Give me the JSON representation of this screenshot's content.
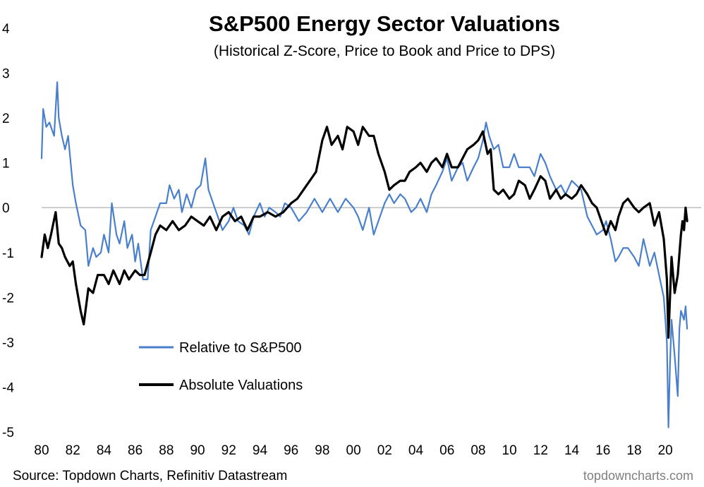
{
  "chart_data": {
    "type": "line",
    "title": "S&P500 Energy Sector Valuations",
    "subtitle": "(Historical Z-Score, Price to Book and Price to DPS)",
    "xlabel": "",
    "ylabel": "",
    "xlim": [
      1980,
      2022.3
    ],
    "ylim": [
      -5,
      4
    ],
    "x_ticks": [
      1980,
      1982,
      1984,
      1986,
      1988,
      1990,
      1992,
      1994,
      1996,
      1998,
      2000,
      2002,
      2004,
      2006,
      2008,
      2010,
      2012,
      2014,
      2016,
      2018,
      2020
    ],
    "x_tick_labels": [
      "80",
      "82",
      "84",
      "86",
      "88",
      "90",
      "92",
      "94",
      "96",
      "98",
      "00",
      "02",
      "04",
      "06",
      "08",
      "10",
      "12",
      "14",
      "16",
      "18",
      "20"
    ],
    "y_ticks": [
      4,
      3,
      2,
      1,
      0,
      -1,
      -2,
      -3,
      -4,
      -5
    ],
    "y_tick_labels": [
      "4",
      "3",
      "2",
      "1",
      "0",
      "-1",
      "-2",
      "-3",
      "-4",
      "-5"
    ],
    "zero_line": true,
    "grid": false,
    "legend_position": "bottom-left",
    "series": [
      {
        "name": "Relative to S&P500",
        "color": "#4a7fcb",
        "x": [
          1980.0,
          1980.1,
          1980.3,
          1980.5,
          1980.8,
          1981.0,
          1981.1,
          1981.3,
          1981.5,
          1981.7,
          1982.0,
          1982.2,
          1982.5,
          1982.8,
          1983.0,
          1983.3,
          1983.5,
          1983.8,
          1984.0,
          1984.3,
          1984.5,
          1984.8,
          1985.0,
          1985.3,
          1985.5,
          1985.8,
          1986.0,
          1986.2,
          1986.5,
          1986.8,
          1987.0,
          1987.3,
          1987.6,
          1988.0,
          1988.2,
          1988.5,
          1988.8,
          1989.0,
          1989.3,
          1989.6,
          1989.9,
          1990.2,
          1990.5,
          1990.7,
          1991.0,
          1991.3,
          1991.6,
          1992.0,
          1992.3,
          1992.6,
          1993.0,
          1993.3,
          1993.6,
          1994.0,
          1994.3,
          1994.6,
          1995.0,
          1995.3,
          1995.6,
          1996.0,
          1996.5,
          1997.0,
          1997.5,
          1998.0,
          1998.5,
          1999.0,
          1999.5,
          2000.0,
          2000.3,
          2000.6,
          2001.0,
          2001.3,
          2001.6,
          2002.0,
          2002.3,
          2002.6,
          2003.0,
          2003.3,
          2003.7,
          2004.0,
          2004.3,
          2004.7,
          2005.0,
          2005.3,
          2005.7,
          2006.0,
          2006.3,
          2006.7,
          2007.0,
          2007.3,
          2007.7,
          2008.0,
          2008.3,
          2008.5,
          2008.7,
          2009.0,
          2009.3,
          2009.6,
          2010.0,
          2010.3,
          2010.6,
          2011.0,
          2011.3,
          2011.6,
          2012.0,
          2012.3,
          2012.6,
          2013.0,
          2013.3,
          2013.6,
          2014.0,
          2014.3,
          2014.6,
          2015.0,
          2015.3,
          2015.6,
          2016.0,
          2016.2,
          2016.5,
          2016.8,
          2017.0,
          2017.3,
          2017.6,
          2018.0,
          2018.3,
          2018.6,
          2019.0,
          2019.3,
          2019.6,
          2019.9,
          2020.1,
          2020.2,
          2020.3,
          2020.4,
          2020.6,
          2020.8,
          2020.9,
          2021.0,
          2021.2,
          2021.3,
          2021.4
        ],
        "values": [
          1.1,
          2.2,
          1.8,
          1.9,
          1.6,
          2.8,
          2.0,
          1.6,
          1.3,
          1.6,
          0.5,
          0.1,
          -0.4,
          -0.5,
          -1.3,
          -0.9,
          -1.1,
          -1.0,
          -0.6,
          -1.0,
          0.1,
          -0.6,
          -0.8,
          -0.3,
          -0.9,
          -0.6,
          -1.2,
          -0.8,
          -1.6,
          -1.6,
          -0.5,
          -0.2,
          0.1,
          0.1,
          0.5,
          0.2,
          0.4,
          -0.1,
          0.3,
          0.0,
          0.4,
          0.5,
          1.1,
          0.4,
          0.1,
          -0.2,
          -0.5,
          -0.3,
          0.0,
          -0.3,
          -0.4,
          -0.6,
          -0.2,
          0.1,
          -0.2,
          0.0,
          -0.1,
          -0.2,
          0.1,
          0.0,
          -0.3,
          -0.1,
          0.2,
          -0.1,
          0.2,
          -0.1,
          0.2,
          0.0,
          -0.2,
          -0.5,
          0.0,
          -0.6,
          -0.3,
          0.1,
          0.3,
          0.1,
          0.3,
          0.2,
          -0.1,
          0.0,
          0.2,
          -0.1,
          0.3,
          0.5,
          0.8,
          1.1,
          0.6,
          0.9,
          1.0,
          0.6,
          0.9,
          1.1,
          1.5,
          1.9,
          1.6,
          1.3,
          1.4,
          0.9,
          0.9,
          1.2,
          0.9,
          0.9,
          0.9,
          0.7,
          1.2,
          1.0,
          0.7,
          0.4,
          0.5,
          0.3,
          0.6,
          0.5,
          0.4,
          -0.2,
          -0.4,
          -0.6,
          -0.5,
          -0.3,
          -0.7,
          -1.2,
          -1.1,
          -0.9,
          -0.9,
          -1.1,
          -1.3,
          -0.7,
          -1.3,
          -1.0,
          -1.5,
          -2.0,
          -3.0,
          -4.9,
          -3.5,
          -2.5,
          -3.3,
          -4.2,
          -2.7,
          -2.3,
          -2.5,
          -2.2,
          -2.7
        ]
      },
      {
        "name": "Absolute Valuations",
        "color": "#000000",
        "x": [
          1980.0,
          1980.2,
          1980.4,
          1980.6,
          1980.9,
          1981.1,
          1981.3,
          1981.5,
          1981.8,
          1982.0,
          1982.2,
          1982.5,
          1982.7,
          1983.0,
          1983.3,
          1983.6,
          1984.0,
          1984.3,
          1984.6,
          1985.0,
          1985.3,
          1985.6,
          1986.0,
          1986.3,
          1986.6,
          1987.0,
          1987.3,
          1987.6,
          1988.0,
          1988.4,
          1988.8,
          1989.2,
          1989.6,
          1990.0,
          1990.4,
          1990.8,
          1991.2,
          1991.6,
          1992.0,
          1992.4,
          1992.8,
          1993.2,
          1993.6,
          1994.0,
          1994.5,
          1995.0,
          1995.5,
          1996.0,
          1996.4,
          1996.8,
          1997.2,
          1997.6,
          1998.0,
          1998.3,
          1998.6,
          1999.0,
          1999.3,
          1999.6,
          2000.0,
          2000.3,
          2000.6,
          2001.0,
          2001.3,
          2001.6,
          2002.0,
          2002.3,
          2002.6,
          2003.0,
          2003.3,
          2003.6,
          2004.0,
          2004.3,
          2004.7,
          2005.0,
          2005.3,
          2005.7,
          2006.0,
          2006.3,
          2006.7,
          2007.0,
          2007.3,
          2007.7,
          2008.0,
          2008.3,
          2008.6,
          2008.8,
          2009.0,
          2009.3,
          2009.6,
          2010.0,
          2010.3,
          2010.6,
          2011.0,
          2011.3,
          2011.6,
          2012.0,
          2012.3,
          2012.6,
          2013.0,
          2013.3,
          2013.6,
          2014.0,
          2014.3,
          2014.6,
          2015.0,
          2015.3,
          2015.6,
          2016.0,
          2016.2,
          2016.5,
          2016.8,
          2017.0,
          2017.3,
          2017.6,
          2018.0,
          2018.3,
          2018.6,
          2019.0,
          2019.3,
          2019.6,
          2019.9,
          2020.1,
          2020.2,
          2020.4,
          2020.6,
          2020.8,
          2021.0,
          2021.1,
          2021.2,
          2021.3,
          2021.4
        ],
        "values": [
          -1.1,
          -0.6,
          -0.9,
          -0.6,
          -0.1,
          -0.8,
          -0.9,
          -1.1,
          -1.3,
          -1.2,
          -1.7,
          -2.3,
          -2.6,
          -1.8,
          -1.9,
          -1.5,
          -1.5,
          -1.7,
          -1.4,
          -1.7,
          -1.4,
          -1.6,
          -1.4,
          -1.5,
          -1.5,
          -1.0,
          -0.6,
          -0.4,
          -0.5,
          -0.3,
          -0.5,
          -0.4,
          -0.2,
          -0.3,
          -0.4,
          -0.2,
          -0.5,
          -0.2,
          -0.1,
          -0.3,
          -0.2,
          -0.5,
          -0.2,
          -0.2,
          -0.1,
          -0.2,
          -0.1,
          0.1,
          0.2,
          0.4,
          0.6,
          0.8,
          1.5,
          1.8,
          1.4,
          1.6,
          1.3,
          1.8,
          1.7,
          1.4,
          1.8,
          1.6,
          1.6,
          1.2,
          0.8,
          0.4,
          0.5,
          0.6,
          0.6,
          0.8,
          0.9,
          1.0,
          0.8,
          1.0,
          1.1,
          0.9,
          1.2,
          0.9,
          0.9,
          1.1,
          1.3,
          1.4,
          1.5,
          1.7,
          1.2,
          1.3,
          0.4,
          0.3,
          0.4,
          0.2,
          0.3,
          0.6,
          0.5,
          0.2,
          0.4,
          0.7,
          0.6,
          0.2,
          0.4,
          0.2,
          0.3,
          0.2,
          0.3,
          0.5,
          0.3,
          0.1,
          0.0,
          -0.4,
          -0.6,
          -0.3,
          -0.5,
          -0.2,
          0.1,
          0.2,
          0.0,
          -0.1,
          0.0,
          0.1,
          -0.4,
          -0.1,
          -0.7,
          -1.6,
          -2.9,
          -1.1,
          -1.9,
          -1.5,
          -0.6,
          -0.3,
          -0.5,
          0.0,
          -0.3
        ]
      }
    ],
    "source": "Source: Topdown Charts, Refinitiv Datastream",
    "credit": "topdowncharts.com"
  }
}
